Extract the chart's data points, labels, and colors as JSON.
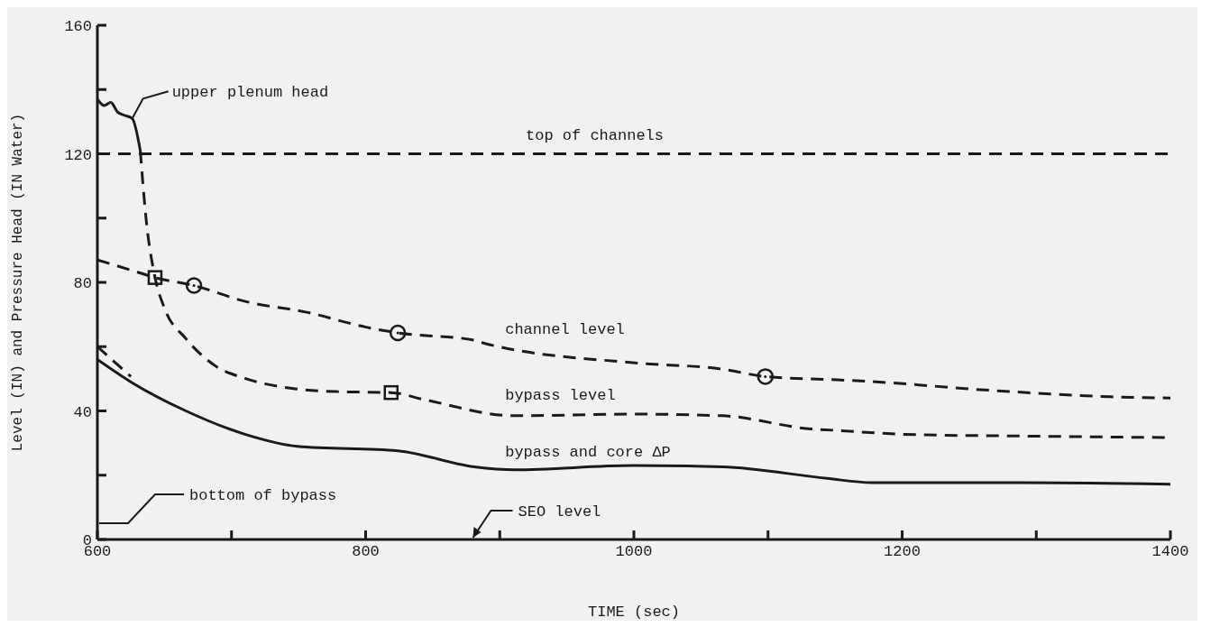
{
  "chart_data": {
    "type": "line",
    "xlabel": "TIME (sec)",
    "ylabel": "Level (IN) and Pressure Head (IN Water)",
    "xlim": [
      600,
      1400
    ],
    "xticks": [
      600,
      {
        "value": 700,
        "label": null
      },
      800,
      {
        "value": 900,
        "label": null
      },
      1000,
      {
        "value": 1100,
        "label": null
      },
      1200,
      {
        "value": 1300,
        "label": null
      },
      1400
    ],
    "ylim": [
      0,
      160
    ],
    "yticks": [
      0,
      {
        "value": 20,
        "label": null
      },
      40,
      {
        "value": 60,
        "label": null
      },
      80,
      {
        "value": 100,
        "label": null
      },
      120,
      {
        "value": 140,
        "label": null
      },
      160
    ],
    "grid": false,
    "legend": false,
    "series": [
      {
        "name": "upper plenum head",
        "color": "#1a1a1a",
        "line_style": "solid",
        "marker": "none",
        "x": [
          600,
          605,
          610,
          615,
          620,
          626,
          632
        ],
        "values": [
          137,
          135,
          136,
          133,
          132,
          131,
          121
        ]
      },
      {
        "name": "bypass level",
        "color": "#1a1a1a",
        "line_style": "dashed",
        "marker": "none",
        "x": [
          632,
          636,
          643,
          650,
          666,
          688,
          711,
          745,
          779,
          819,
          844,
          911,
          999,
          1066,
          1132,
          1148,
          1210,
          1288,
          1400
        ],
        "values": [
          121,
          101,
          81.5,
          72,
          62.5,
          54,
          50,
          47,
          46,
          45.7,
          43.5,
          38.5,
          39,
          38.5,
          34.4,
          34,
          32.6,
          32.2,
          31.7
        ]
      },
      {
        "color": "#1a1a1a",
        "line_style": "dashed",
        "marker": "none",
        "x": [
          600,
          625
        ],
        "values": [
          60,
          50.7
        ]
      },
      {
        "name": "channel level",
        "color": "#1a1a1a",
        "line_style": "dashed",
        "marker": "none",
        "x": [
          600,
          629,
          643,
          672,
          711,
          756,
          801,
          824,
          881,
          889,
          999,
          1066,
          1098,
          1144,
          1166,
          1266,
          1355,
          1400
        ],
        "values": [
          87,
          83.3,
          81.5,
          79,
          74,
          70.7,
          66,
          64.3,
          62,
          61,
          55,
          53,
          50.7,
          49.8,
          49.4,
          46.4,
          44.4,
          44
        ]
      },
      {
        "name": "bypass and core ΔP",
        "color": "#1a1a1a",
        "line_style": "solid",
        "marker": "none",
        "x": [
          600,
          625,
          666,
          711,
          749,
          824,
          881,
          911,
          999,
          1066,
          1144,
          1177,
          1288,
          1400
        ],
        "values": [
          56,
          49,
          40,
          32.6,
          29,
          27.6,
          22.6,
          21.7,
          23,
          22.6,
          19,
          17.7,
          17.7,
          17.2
        ]
      },
      {
        "type": "scatter",
        "color": "#1a1a1a",
        "marker": "square",
        "x": [
          643,
          819
        ],
        "values": [
          81.5,
          45.7
        ]
      },
      {
        "type": "scatter",
        "color": "#1a1a1a",
        "marker": "circle",
        "x": [
          672,
          824,
          1098
        ],
        "values": [
          79,
          64.3,
          50.7
        ]
      }
    ],
    "ref_lines": [
      {
        "axis": "y",
        "value": 120,
        "label": "top of channels",
        "line_style": "dashed",
        "color": "#1a1a1a"
      }
    ],
    "annotations": [
      "bottom of bypass",
      "SEO level"
    ]
  }
}
